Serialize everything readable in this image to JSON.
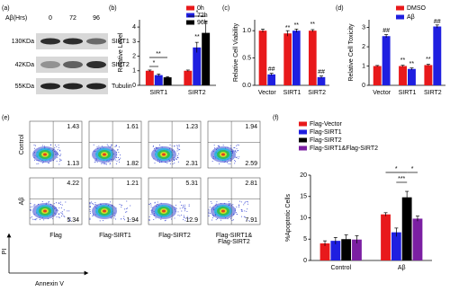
{
  "panel_labels": [
    "(a)",
    "(b)",
    "(c)",
    "(d)",
    "(e)",
    "(f)"
  ],
  "blot": {
    "treatment_label": "Aβ(Hrs)",
    "lanes": [
      "0",
      "72",
      "96"
    ],
    "bands": [
      {
        "size": "130KDa",
        "protein": "SIRT1"
      },
      {
        "size": "42KDa",
        "protein": "SIRT2"
      },
      {
        "size": "55KDa",
        "protein": "Tubulin"
      }
    ]
  },
  "chart_data": [
    {
      "type": "bar",
      "y_label": "Relative Level",
      "categories": [
        "SIRT1",
        "SIRT2"
      ],
      "series": [
        {
          "name": "0h",
          "color": "#e8191b",
          "values": [
            1,
            1
          ],
          "errors": [
            0.05,
            0.05
          ]
        },
        {
          "name": "72h",
          "color": "#1f1fe0",
          "values": [
            0.7,
            2.6
          ],
          "errors": [
            0.08,
            0.35
          ]
        },
        {
          "name": "96h",
          "color": "#000000",
          "values": [
            0.55,
            3.6
          ],
          "errors": [
            0.05,
            0.8
          ]
        }
      ],
      "ylim": [
        0,
        4.5
      ],
      "yticks": [
        0,
        1,
        2,
        3,
        4
      ],
      "legend": "upper right",
      "annotations": [
        "*",
        "**",
        "*",
        "**"
      ]
    },
    {
      "type": "bar",
      "y_label": "Relative Cell Viability",
      "categories": [
        "Vector",
        "SIRT1",
        "SIRT2"
      ],
      "series": [
        {
          "color": "#e8191b",
          "values": [
            1.0,
            0.95,
            1.0
          ],
          "errors": [
            0.03,
            0.05,
            0.02
          ]
        },
        {
          "color": "#1f1fe0",
          "values": [
            0.2,
            1.0,
            0.15
          ],
          "errors": [
            0.02,
            0.03,
            0.02
          ]
        }
      ],
      "ylim": [
        0,
        1.2
      ],
      "yticks": [
        {
          "value": 0,
          "label": "0.0"
        },
        0.5,
        {
          "value": 1,
          "label": "1.0"
        }
      ],
      "annotations": [
        "##",
        "**",
        "**",
        "**",
        "##"
      ]
    },
    {
      "type": "bar",
      "y_label": "Relative Cell Toxicity",
      "categories": [
        "Vector",
        "SIRT1",
        "SIRT2"
      ],
      "series": [
        {
          "name": "DMSO",
          "color": "#e8191b",
          "values": [
            1,
            1.0,
            1.05
          ],
          "errors": [
            0.03,
            0.04,
            0.04
          ]
        },
        {
          "name": "Aβ",
          "color": "#1f1fe0",
          "values": [
            2.55,
            0.85,
            3.05
          ],
          "errors": [
            0.08,
            0.05,
            0.08
          ]
        }
      ],
      "ylim": [
        0,
        3.4
      ],
      "yticks": [
        0,
        1,
        2,
        3
      ],
      "legend": "upper right",
      "annotations": [
        "##",
        "**",
        "**",
        "**",
        "##"
      ]
    },
    {
      "type": "bar",
      "y_label": "%Apoptotic Cells",
      "categories": [
        "Control",
        "Aβ"
      ],
      "series": [
        {
          "name": "Flag-Vector",
          "color": "#e8191b",
          "values": [
            4,
            10.8
          ],
          "errors": [
            0.6,
            0.4
          ]
        },
        {
          "name": "Flag-SIRT1",
          "color": "#1f1fe0",
          "values": [
            4.6,
            6.6
          ],
          "errors": [
            0.8,
            1.0
          ]
        },
        {
          "name": "Flag-SIRT2",
          "color": "#000000",
          "values": [
            5,
            14.8
          ],
          "errors": [
            1.0,
            1.4
          ]
        },
        {
          "name": "Flag-SIRT1&Flag-SIRT2",
          "color": "#7b1fa2",
          "values": [
            4.9,
            9.8
          ],
          "errors": [
            0.9,
            0.6
          ]
        }
      ],
      "ylim": [
        0,
        20
      ],
      "yticks": [
        0,
        5,
        10,
        15,
        20
      ],
      "legend": "upper left",
      "annotations": [
        "*",
        "*",
        "***"
      ]
    }
  ],
  "flow": {
    "rows": [
      "Control",
      "Aβ"
    ],
    "columns": [
      [
        "Flag"
      ],
      [
        "Flag-SIRT1"
      ],
      [
        "Flag-SIRT2"
      ],
      [
        "Flag-SIRT1&",
        "Flag-SIRT2"
      ]
    ],
    "quadrants": [
      [
        [
          "1.43",
          "1.13"
        ],
        [
          "1.61",
          "1.82"
        ],
        [
          "1.23",
          "2.31"
        ],
        [
          "1.94",
          "2.59"
        ]
      ],
      [
        [
          "4.22",
          "5.34"
        ],
        [
          "1.21",
          "1.94"
        ],
        [
          "5.31",
          "12.9"
        ],
        [
          "2.81",
          "7.91"
        ]
      ]
    ],
    "y_axis_label": "PI",
    "x_axis_label": "Annexin V"
  }
}
